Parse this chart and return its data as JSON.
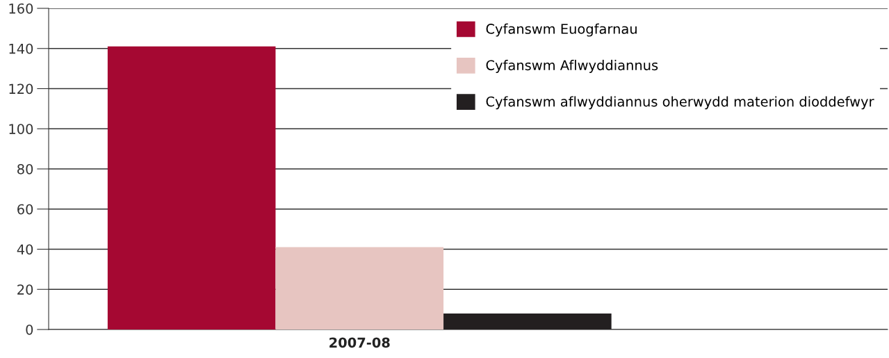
{
  "chart_data": {
    "type": "bar",
    "categories": [
      "2007-08"
    ],
    "series": [
      {
        "name": "Cyfanswm Euogfarnau",
        "color": "#a50832",
        "values": [
          141
        ]
      },
      {
        "name": "Cyfanswm Aflwyddiannus",
        "color": "#e7c5c1",
        "values": [
          41
        ]
      },
      {
        "name": "Cyfanswm aflwyddiannus oherwydd materion dioddefwyr",
        "color": "#231f20",
        "values": [
          8
        ]
      }
    ],
    "ylim": [
      0,
      160
    ],
    "yticks": [
      0,
      20,
      40,
      60,
      80,
      100,
      120,
      140,
      160
    ],
    "grid": "y",
    "legend": "top right"
  }
}
